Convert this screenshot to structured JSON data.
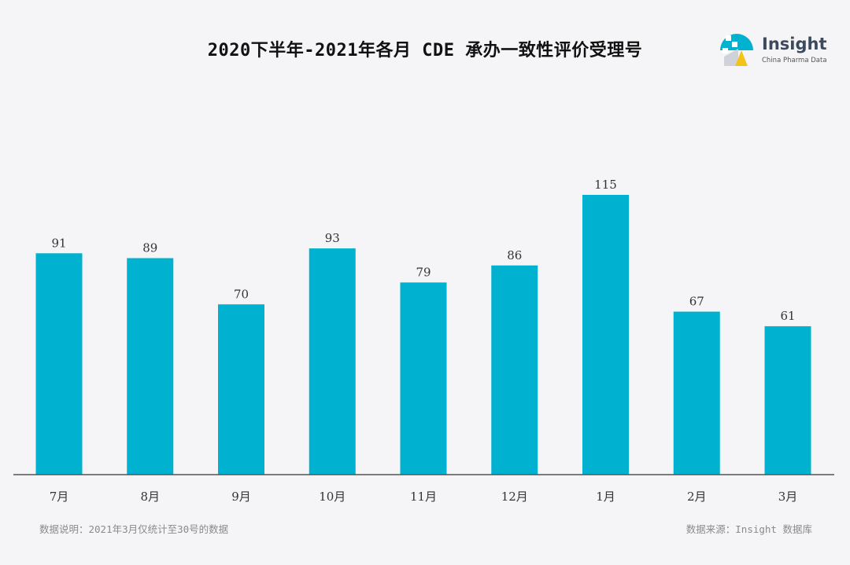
{
  "header": {
    "title": "2020下半年-2021年各月 CDE 承办一致性评价受理号"
  },
  "logo": {
    "name": "Insight",
    "subtitle": "China Pharma Data"
  },
  "footer": {
    "note": "数据说明：2021年3月仅统计至30号的数据",
    "source": "数据来源：Insight 数据库"
  },
  "colors": {
    "bar": "#00b2cf",
    "axis": "#555555",
    "background": "#f5f5f7"
  },
  "chart_data": {
    "type": "bar",
    "title": "2020下半年-2021年各月 CDE 承办一致性评价受理号",
    "xlabel": "",
    "ylabel": "",
    "categories": [
      "7月",
      "8月",
      "9月",
      "10月",
      "11月",
      "12月",
      "1月",
      "2月",
      "3月"
    ],
    "values": [
      91,
      89,
      70,
      93,
      79,
      86,
      115,
      67,
      61
    ],
    "ylim": [
      0,
      115
    ],
    "grid": false,
    "legend": "none",
    "data_labels": true
  }
}
